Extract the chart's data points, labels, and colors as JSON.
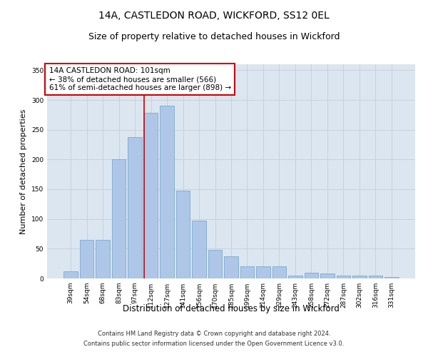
{
  "title": "14A, CASTLEDON ROAD, WICKFORD, SS12 0EL",
  "subtitle": "Size of property relative to detached houses in Wickford",
  "xlabel": "Distribution of detached houses by size in Wickford",
  "ylabel": "Number of detached properties",
  "categories": [
    "39sqm",
    "54sqm",
    "68sqm",
    "83sqm",
    "97sqm",
    "112sqm",
    "127sqm",
    "141sqm",
    "156sqm",
    "170sqm",
    "185sqm",
    "199sqm",
    "214sqm",
    "229sqm",
    "243sqm",
    "258sqm",
    "272sqm",
    "287sqm",
    "302sqm",
    "316sqm",
    "331sqm"
  ],
  "values": [
    12,
    65,
    65,
    200,
    238,
    278,
    290,
    148,
    97,
    48,
    37,
    20,
    20,
    20,
    5,
    10,
    9,
    5,
    5,
    5,
    3
  ],
  "bar_color": "#aec6e8",
  "bar_edge_color": "#7aaad0",
  "annotation_text_line1": "14A CASTLEDON ROAD: 101sqm",
  "annotation_text_line2": "← 38% of detached houses are smaller (566)",
  "annotation_text_line3": "61% of semi-detached houses are larger (898) →",
  "annotation_box_color": "#ffffff",
  "annotation_box_edge_color": "#cc0000",
  "vline_color": "#cc0000",
  "vline_x": 4.575,
  "ylim": [
    0,
    360
  ],
  "yticks": [
    0,
    50,
    100,
    150,
    200,
    250,
    300,
    350
  ],
  "grid_color": "#c8d0dc",
  "bg_color": "#dce6f0",
  "footer1": "Contains HM Land Registry data © Crown copyright and database right 2024.",
  "footer2": "Contains public sector information licensed under the Open Government Licence v3.0.",
  "title_fontsize": 10,
  "subtitle_fontsize": 9,
  "xlabel_fontsize": 8.5,
  "ylabel_fontsize": 8,
  "tick_fontsize": 6.5,
  "annotation_fontsize": 7.5,
  "footer_fontsize": 6
}
